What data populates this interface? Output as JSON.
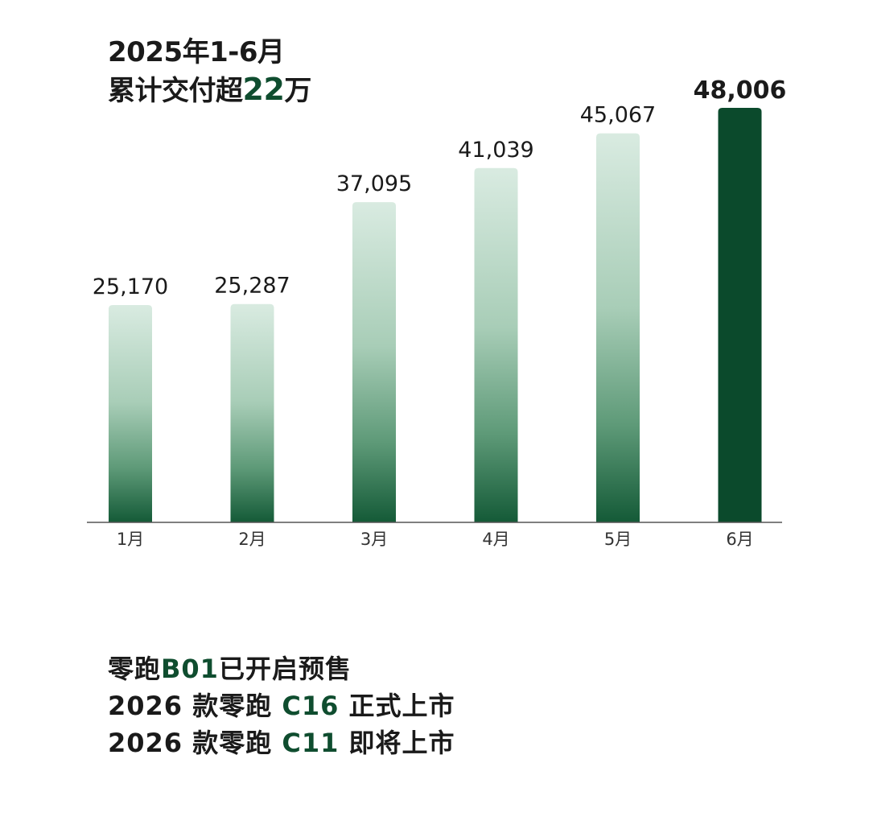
{
  "headline": {
    "line1": "2025年1-6月",
    "line2_prefix": "累计交付超",
    "line2_number": "22",
    "line2_suffix": "万"
  },
  "chart_data": {
    "type": "bar",
    "categories": [
      "1月",
      "2月",
      "3月",
      "4月",
      "5月",
      "6月"
    ],
    "values": [
      25170,
      25287,
      37095,
      41039,
      45067,
      48006
    ],
    "value_labels": [
      "25,170",
      "25,287",
      "37,095",
      "41,039",
      "45,067",
      "48,006"
    ],
    "highlight_index": 5,
    "grid": false,
    "colors": {
      "highlight": "#0b4a2c",
      "gradient_top": "#d7e9df",
      "gradient_bottom": "#145a37",
      "axis": "#555555"
    }
  },
  "footer": [
    {
      "prefix": "零跑",
      "model": "B01",
      "suffix": "已开启预售"
    },
    {
      "prefix": "2026 款零跑 ",
      "model": "C16",
      "suffix": " 正式上市"
    },
    {
      "prefix": "2026 款零跑 ",
      "model": "C11",
      "suffix": " 即将上市"
    }
  ]
}
